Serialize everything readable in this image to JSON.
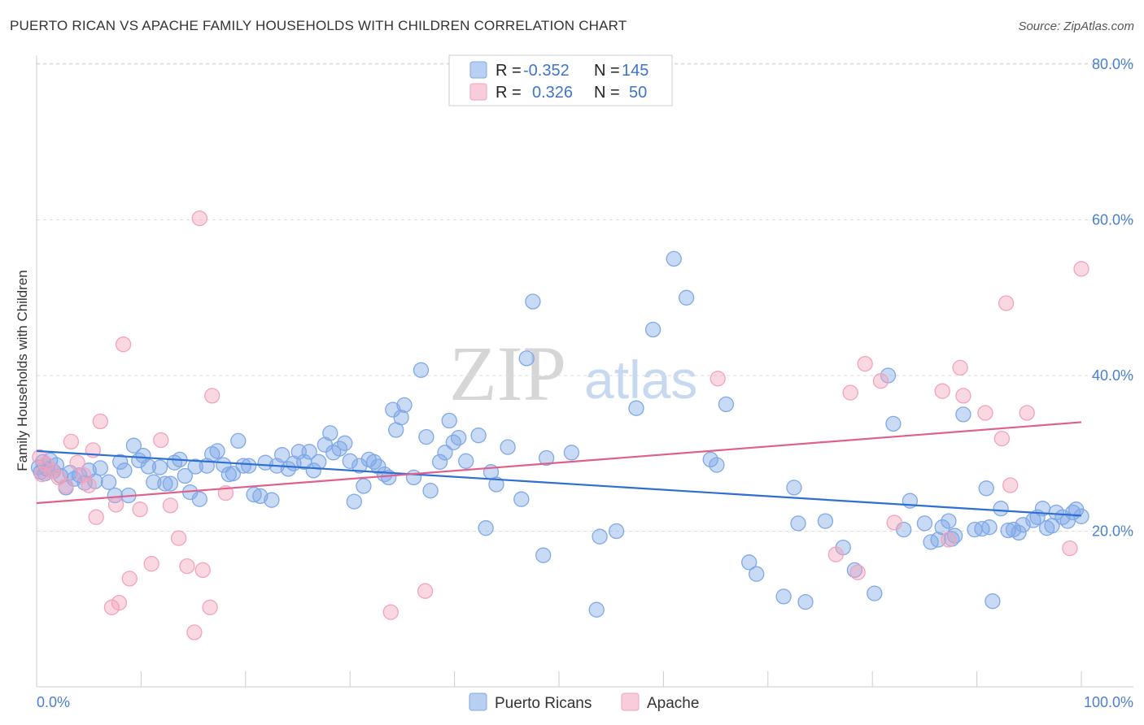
{
  "title": "PUERTO RICAN VS APACHE FAMILY HOUSEHOLDS WITH CHILDREN CORRELATION CHART",
  "source": "Source: ZipAtlas.com",
  "watermark": {
    "zip": "ZIP",
    "atlas": "atlas"
  },
  "legend": {
    "rows": [
      {
        "r_label": "R =",
        "r_value": "-0.352",
        "n_label": "N =",
        "n_value": "145",
        "color": "#7fa8e6"
      },
      {
        "r_label": "R =",
        "r_value": "0.326",
        "n_label": "N =",
        "n_value": "50",
        "color": "#f2a3bb"
      }
    ]
  },
  "chart_data": {
    "type": "scatter",
    "xlabel": "",
    "ylabel": "Family Households with Children",
    "xlim": [
      0,
      100
    ],
    "ylim": [
      0,
      82
    ],
    "x_tick_labels": [
      {
        "value": 0,
        "label": "0.0%"
      },
      {
        "value": 100,
        "label": "100.0%"
      }
    ],
    "x_minor_ticks": [
      0,
      10,
      20,
      30,
      40,
      50,
      60,
      70,
      80,
      90,
      100
    ],
    "y_ticks": [
      {
        "value": 20,
        "label": "20.0%"
      },
      {
        "value": 40,
        "label": "40.0%"
      },
      {
        "value": 60,
        "label": "60.0%"
      },
      {
        "value": 80,
        "label": "80.0%"
      }
    ],
    "series": [
      {
        "name": "Puerto Ricans",
        "color": "#7fa8e6",
        "line_color": "#2e6fd1",
        "trend": {
          "x": [
            0,
            100
          ],
          "y": [
            30.3,
            22.0
          ]
        },
        "points": [
          [
            0.2,
            28.2
          ],
          [
            0.4,
            27.6
          ],
          [
            0.6,
            28.9
          ],
          [
            0.8,
            27.4
          ],
          [
            1.0,
            28.0
          ],
          [
            1.3,
            29.1
          ],
          [
            1.6,
            27.7
          ],
          [
            1.9,
            28.5
          ],
          [
            2.3,
            27.1
          ],
          [
            2.8,
            25.6
          ],
          [
            3.2,
            27.5
          ],
          [
            3.6,
            26.7
          ],
          [
            4.1,
            27.2
          ],
          [
            4.6,
            26.2
          ],
          [
            5.0,
            27.8
          ],
          [
            5.6,
            26.4
          ],
          [
            6.1,
            28.1
          ],
          [
            6.9,
            26.3
          ],
          [
            7.5,
            24.6
          ],
          [
            8.0,
            28.9
          ],
          [
            8.4,
            27.8
          ],
          [
            8.8,
            24.6
          ],
          [
            9.3,
            31.0
          ],
          [
            9.8,
            29.1
          ],
          [
            10.2,
            29.7
          ],
          [
            10.7,
            28.3
          ],
          [
            11.2,
            26.3
          ],
          [
            11.8,
            28.2
          ],
          [
            12.3,
            26.1
          ],
          [
            12.8,
            26.1
          ],
          [
            13.2,
            28.8
          ],
          [
            13.7,
            29.2
          ],
          [
            14.2,
            27.1
          ],
          [
            14.7,
            25.0
          ],
          [
            15.2,
            28.3
          ],
          [
            15.6,
            24.1
          ],
          [
            16.3,
            28.4
          ],
          [
            16.8,
            29.9
          ],
          [
            17.3,
            30.3
          ],
          [
            17.9,
            28.5
          ],
          [
            18.4,
            27.3
          ],
          [
            18.8,
            27.4
          ],
          [
            19.3,
            31.6
          ],
          [
            19.8,
            28.4
          ],
          [
            20.3,
            28.4
          ],
          [
            20.8,
            24.7
          ],
          [
            21.4,
            24.5
          ],
          [
            21.9,
            28.8
          ],
          [
            22.5,
            24.0
          ],
          [
            23.0,
            28.4
          ],
          [
            23.5,
            29.8
          ],
          [
            24.1,
            28.0
          ],
          [
            24.6,
            28.7
          ],
          [
            25.1,
            30.2
          ],
          [
            25.6,
            28.9
          ],
          [
            26.1,
            30.2
          ],
          [
            26.5,
            27.8
          ],
          [
            27.0,
            28.9
          ],
          [
            27.6,
            31.1
          ],
          [
            28.1,
            32.6
          ],
          [
            28.4,
            30.1
          ],
          [
            29.0,
            30.6
          ],
          [
            29.5,
            31.3
          ],
          [
            30.0,
            29.0
          ],
          [
            30.4,
            23.8
          ],
          [
            30.9,
            28.4
          ],
          [
            31.3,
            25.8
          ],
          [
            31.8,
            29.2
          ],
          [
            32.3,
            28.9
          ],
          [
            32.7,
            28.3
          ],
          [
            33.3,
            27.3
          ],
          [
            33.7,
            26.9
          ],
          [
            34.1,
            35.6
          ],
          [
            34.4,
            33.0
          ],
          [
            34.9,
            34.6
          ],
          [
            35.2,
            36.2
          ],
          [
            36.1,
            26.9
          ],
          [
            36.8,
            40.7
          ],
          [
            37.3,
            32.1
          ],
          [
            37.7,
            25.2
          ],
          [
            38.6,
            28.9
          ],
          [
            39.1,
            30.1
          ],
          [
            39.5,
            34.2
          ],
          [
            39.9,
            31.4
          ],
          [
            40.4,
            32.0
          ],
          [
            41.1,
            29.0
          ],
          [
            42.3,
            32.3
          ],
          [
            43.0,
            20.4
          ],
          [
            43.5,
            27.6
          ],
          [
            44.0,
            26.0
          ],
          [
            45.1,
            30.8
          ],
          [
            46.4,
            24.1
          ],
          [
            46.9,
            42.2
          ],
          [
            47.5,
            49.5
          ],
          [
            48.5,
            16.9
          ],
          [
            48.8,
            29.4
          ],
          [
            51.2,
            30.1
          ],
          [
            53.6,
            9.9
          ],
          [
            53.9,
            19.3
          ],
          [
            55.5,
            20.0
          ],
          [
            57.4,
            35.8
          ],
          [
            59.0,
            45.9
          ],
          [
            61.0,
            55.0
          ],
          [
            62.2,
            50.0
          ],
          [
            64.5,
            29.2
          ],
          [
            65.1,
            28.5
          ],
          [
            66.0,
            36.3
          ],
          [
            68.2,
            16.0
          ],
          [
            68.9,
            14.5
          ],
          [
            71.5,
            11.6
          ],
          [
            72.5,
            25.6
          ],
          [
            72.9,
            21.0
          ],
          [
            73.6,
            10.9
          ],
          [
            75.5,
            21.3
          ],
          [
            77.2,
            17.9
          ],
          [
            78.3,
            15.0
          ],
          [
            80.2,
            12.0
          ],
          [
            81.5,
            40.0
          ],
          [
            82.0,
            33.8
          ],
          [
            83.0,
            20.2
          ],
          [
            83.6,
            23.9
          ],
          [
            85.0,
            21.0
          ],
          [
            85.6,
            18.6
          ],
          [
            86.3,
            18.9
          ],
          [
            86.7,
            20.5
          ],
          [
            87.3,
            21.3
          ],
          [
            87.6,
            19.0
          ],
          [
            87.9,
            19.4
          ],
          [
            88.7,
            35.0
          ],
          [
            89.8,
            20.2
          ],
          [
            90.5,
            20.3
          ],
          [
            90.9,
            25.5
          ],
          [
            91.2,
            20.5
          ],
          [
            91.5,
            11.0
          ],
          [
            92.3,
            22.9
          ],
          [
            93.0,
            20.1
          ],
          [
            93.5,
            20.2
          ],
          [
            94.0,
            19.8
          ],
          [
            94.4,
            20.8
          ],
          [
            95.4,
            21.4
          ],
          [
            95.8,
            21.8
          ],
          [
            96.3,
            22.9
          ],
          [
            96.7,
            20.4
          ],
          [
            97.2,
            20.7
          ],
          [
            97.6,
            22.4
          ],
          [
            98.2,
            21.8
          ],
          [
            98.7,
            21.3
          ],
          [
            99.2,
            22.4
          ],
          [
            99.5,
            22.8
          ],
          [
            100.0,
            21.9
          ]
        ]
      },
      {
        "name": "Apache",
        "color": "#f2a3bb",
        "line_color": "#e0608b",
        "trend": {
          "x": [
            0,
            100
          ],
          "y": [
            23.6,
            34.0
          ]
        },
        "points": [
          [
            0.3,
            29.5
          ],
          [
            0.9,
            28.6
          ],
          [
            1.5,
            27.7
          ],
          [
            2.1,
            26.9
          ],
          [
            2.8,
            25.8
          ],
          [
            3.3,
            31.5
          ],
          [
            3.9,
            28.8
          ],
          [
            4.5,
            27.2
          ],
          [
            5.0,
            25.9
          ],
          [
            5.4,
            30.4
          ],
          [
            5.7,
            21.8
          ],
          [
            6.1,
            34.1
          ],
          [
            7.2,
            10.2
          ],
          [
            7.6,
            23.4
          ],
          [
            7.9,
            10.8
          ],
          [
            8.3,
            44.0
          ],
          [
            8.9,
            13.9
          ],
          [
            9.9,
            22.8
          ],
          [
            11.0,
            15.8
          ],
          [
            11.9,
            31.7
          ],
          [
            12.8,
            23.3
          ],
          [
            13.6,
            19.1
          ],
          [
            14.4,
            15.5
          ],
          [
            15.1,
            7.0
          ],
          [
            15.6,
            60.2
          ],
          [
            15.9,
            15.0
          ],
          [
            16.6,
            10.2
          ],
          [
            16.8,
            37.4
          ],
          [
            18.1,
            24.9
          ],
          [
            33.9,
            9.6
          ],
          [
            37.2,
            12.3
          ],
          [
            65.2,
            39.6
          ],
          [
            76.5,
            17.0
          ],
          [
            77.9,
            37.8
          ],
          [
            78.6,
            14.7
          ],
          [
            79.3,
            41.5
          ],
          [
            80.8,
            39.3
          ],
          [
            82.1,
            21.1
          ],
          [
            86.7,
            38.0
          ],
          [
            87.3,
            18.9
          ],
          [
            88.4,
            41.0
          ],
          [
            88.7,
            37.4
          ],
          [
            90.8,
            35.2
          ],
          [
            92.4,
            31.9
          ],
          [
            92.8,
            49.3
          ],
          [
            93.2,
            25.9
          ],
          [
            94.8,
            35.2
          ],
          [
            98.9,
            17.8
          ],
          [
            100.0,
            53.7
          ],
          [
            0.5,
            27.3
          ]
        ]
      }
    ]
  }
}
